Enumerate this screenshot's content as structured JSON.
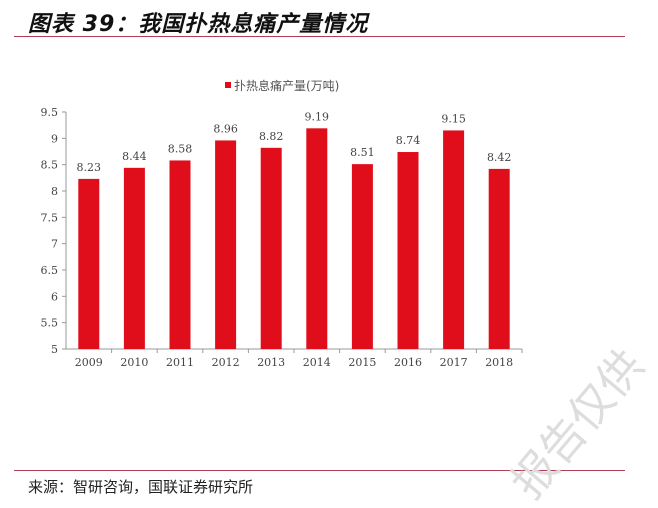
{
  "title": "图表 39：我国扑热息痛产量情况",
  "source": "来源：智研咨询，国联证券研究所",
  "watermark": "报告仅供",
  "colors": {
    "bar": "#e00d1b",
    "rule": "#b0405a"
  },
  "chart_data": {
    "type": "bar",
    "categories": [
      "2009",
      "2010",
      "2011",
      "2012",
      "2013",
      "2014",
      "2015",
      "2016",
      "2017",
      "2018"
    ],
    "series": [
      {
        "name": "扑热息痛产量(万吨)",
        "values": [
          8.23,
          8.44,
          8.58,
          8.96,
          8.82,
          9.19,
          8.51,
          8.74,
          9.15,
          8.42
        ]
      }
    ],
    "ylim": [
      5,
      9.5
    ],
    "yticks": [
      "5",
      "5.5",
      "6",
      "6.5",
      "7",
      "7.5",
      "8",
      "8.5",
      "9",
      "9.5"
    ],
    "legend": "top-center",
    "grid": false
  }
}
